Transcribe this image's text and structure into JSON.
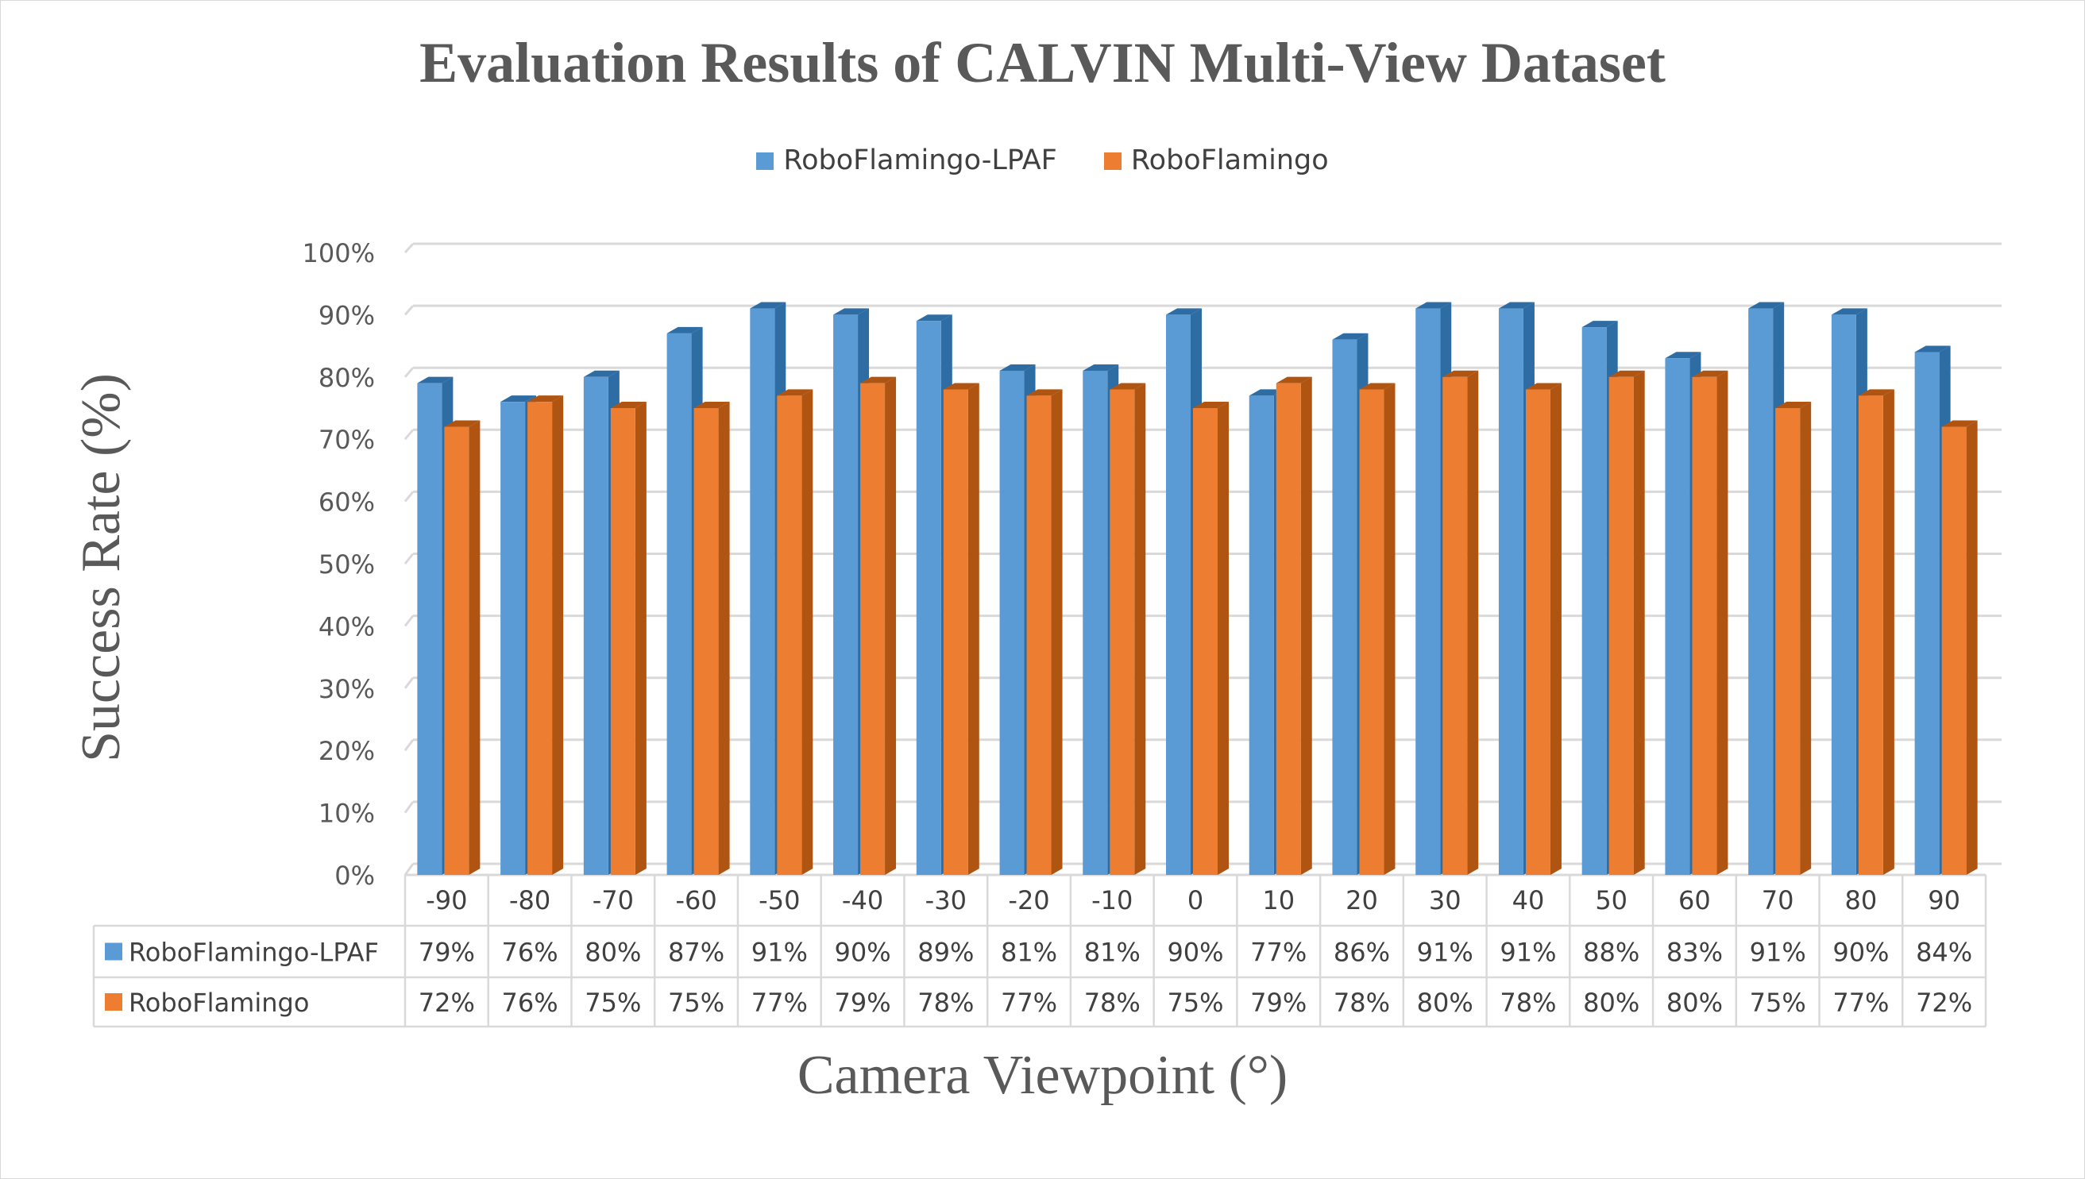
{
  "colors": {
    "series1": "#5b9bd5",
    "series1_dark": "#2e6ca4",
    "series2": "#ed7d31",
    "series2_dark": "#b05412",
    "grid": "#d9d9d9",
    "text": "#595959"
  },
  "chart_data": {
    "type": "bar",
    "title": "Evaluation Results of CALVIN Multi-View Dataset",
    "xlabel": "Camera Viewpoint (°)",
    "ylabel": "Success Rate (%)",
    "ylim": [
      0,
      100
    ],
    "y_ticks": [
      "0%",
      "10%",
      "20%",
      "30%",
      "40%",
      "50%",
      "60%",
      "70%",
      "80%",
      "90%",
      "100%"
    ],
    "categories": [
      "-90",
      "-80",
      "-70",
      "-60",
      "-50",
      "-40",
      "-30",
      "-20",
      "-10",
      "0",
      "10",
      "20",
      "30",
      "40",
      "50",
      "60",
      "70",
      "80",
      "90"
    ],
    "series": [
      {
        "name": "RoboFlamingo-LPAF",
        "values": [
          79,
          76,
          80,
          87,
          91,
          90,
          89,
          81,
          81,
          90,
          77,
          86,
          91,
          91,
          88,
          83,
          91,
          90,
          84
        ]
      },
      {
        "name": "RoboFlamingo",
        "values": [
          72,
          76,
          75,
          75,
          77,
          79,
          78,
          77,
          78,
          75,
          79,
          78,
          80,
          78,
          80,
          80,
          75,
          77,
          72
        ]
      }
    ],
    "legend_position": "top",
    "grid": true,
    "data_table": true
  }
}
